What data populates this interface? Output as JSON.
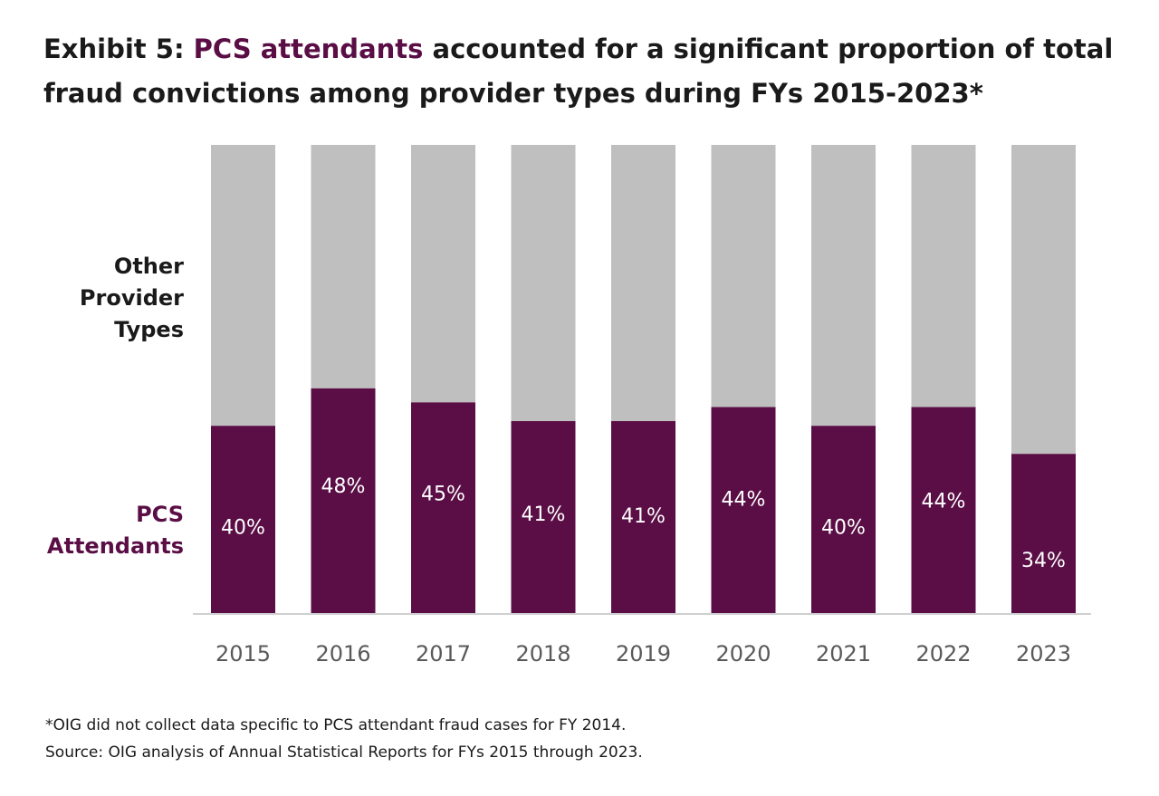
{
  "title": {
    "prefix": "Exhibit 5: ",
    "highlight": "PCS attendants",
    "suffix_line1": " accounted for a significant proportion of total",
    "line2": "fraud convictions among provider types during FYs 2015-2023*"
  },
  "notes": {
    "footnote": "*OIG did not collect data specific to PCS attendant fraud cases for FY 2014.",
    "source": "Source: OIG analysis of Annual Statistical Reports for FYs 2015 through 2023."
  },
  "colors": {
    "pcs": "#5a0e45",
    "other": "#bfbfbf",
    "axis": "#d0d0d0",
    "tick_text": "#595959",
    "label_dark": "#1a1a1a",
    "data_label": "#ffffff"
  },
  "chart_data": {
    "type": "bar",
    "stacked": true,
    "percent_stacked": true,
    "categories": [
      "2015",
      "2016",
      "2017",
      "2018",
      "2019",
      "2020",
      "2021",
      "2022",
      "2023"
    ],
    "series": [
      {
        "name": "PCS Attendants",
        "values": [
          40,
          48,
          45,
          41,
          41,
          44,
          40,
          44,
          34
        ],
        "data_labels": [
          "40%",
          "48%",
          "45%",
          "41%",
          "41%",
          "44%",
          "40%",
          "44%",
          "34%"
        ]
      },
      {
        "name": "Other Provider Types",
        "values": [
          60,
          52,
          55,
          59,
          59,
          56,
          60,
          56,
          66
        ]
      }
    ],
    "legend": [
      {
        "lines": [
          "Other",
          "Provider",
          "Types"
        ]
      },
      {
        "lines": [
          "PCS",
          "Attendants"
        ]
      }
    ],
    "legend_placement": "left",
    "ylim": [
      0,
      100
    ],
    "grid": false
  }
}
